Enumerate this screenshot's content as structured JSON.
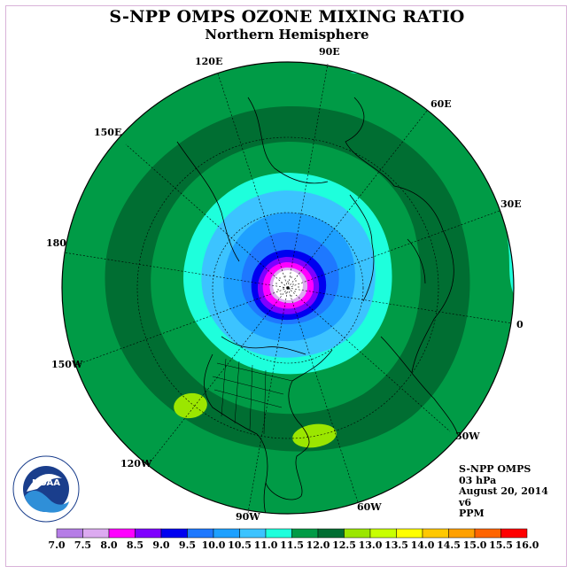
{
  "title": "S-NPP OMPS OZONE MIXING RATIO",
  "subtitle": "Northern Hemisphere",
  "longitude_labels": [
    "90E",
    "60E",
    "30E",
    "0",
    "30W",
    "60W",
    "90W",
    "120W",
    "150W",
    "180",
    "150E",
    "120E"
  ],
  "info": {
    "instrument": "S-NPP OMPS",
    "level": "03 hPa",
    "date": "August 20, 2014",
    "version": "v6",
    "units": "PPM"
  },
  "logo_text": "NOAA",
  "colorbar": {
    "labels": [
      "7.0",
      "7.5",
      "8.0",
      "8.5",
      "9.0",
      "9.5",
      "10.0",
      "10.5",
      "11.0",
      "11.5",
      "12.0",
      "12.5",
      "13.0",
      "13.5",
      "14.0",
      "14.5",
      "15.0",
      "15.5",
      "16.0"
    ],
    "colors": [
      "#b57de6",
      "#dcaaf0",
      "#ff00ff",
      "#7f00ff",
      "#0000f0",
      "#1e78ff",
      "#1ea0ff",
      "#3cc3ff",
      "#1effdc",
      "#009b46",
      "#006e32",
      "#9be600",
      "#c8ff00",
      "#ffff00",
      "#ffc800",
      "#ffa000",
      "#ff6400",
      "#ff0000",
      "#8c5a3c"
    ]
  },
  "colors": {
    "ocean_outer": "#009b46",
    "band_dark": "#006e32",
    "band_cyan": "#1effdc",
    "band_lightblue": "#3cc3ff",
    "band_blue": "#1ea0ff",
    "band_mid": "#1e78ff",
    "band_navy": "#0000f0",
    "band_purple": "#7f00ff",
    "band_magenta": "#ff00ff",
    "band_pink": "#dcaaf0",
    "patch_yellowgreen": "#9be600"
  }
}
